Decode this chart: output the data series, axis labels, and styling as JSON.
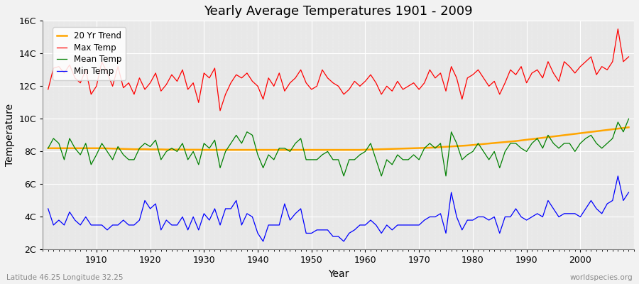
{
  "title": "Yearly Average Temperatures 1901 - 2009",
  "xlabel": "Year",
  "ylabel": "Temperature",
  "subtitle": "Latitude 46.25 Longitude 32.25",
  "watermark": "worldspecies.org",
  "years": [
    1901,
    1902,
    1903,
    1904,
    1905,
    1906,
    1907,
    1908,
    1909,
    1910,
    1911,
    1912,
    1913,
    1914,
    1915,
    1916,
    1917,
    1918,
    1919,
    1920,
    1921,
    1922,
    1923,
    1924,
    1925,
    1926,
    1927,
    1928,
    1929,
    1930,
    1931,
    1932,
    1933,
    1934,
    1935,
    1936,
    1937,
    1938,
    1939,
    1940,
    1941,
    1942,
    1943,
    1944,
    1945,
    1946,
    1947,
    1948,
    1949,
    1950,
    1951,
    1952,
    1953,
    1954,
    1955,
    1956,
    1957,
    1958,
    1959,
    1960,
    1961,
    1962,
    1963,
    1964,
    1965,
    1966,
    1967,
    1968,
    1969,
    1970,
    1971,
    1972,
    1973,
    1974,
    1975,
    1976,
    1977,
    1978,
    1979,
    1980,
    1981,
    1982,
    1983,
    1984,
    1985,
    1986,
    1987,
    1988,
    1989,
    1990,
    1991,
    1992,
    1993,
    1994,
    1995,
    1996,
    1997,
    1998,
    1999,
    2000,
    2001,
    2002,
    2003,
    2004,
    2005,
    2006,
    2007,
    2008,
    2009
  ],
  "max_temp": [
    11.8,
    13.1,
    13.2,
    12.8,
    13.3,
    12.5,
    12.2,
    13.0,
    11.5,
    12.0,
    13.5,
    12.8,
    12.0,
    13.2,
    11.9,
    12.2,
    11.5,
    12.5,
    11.8,
    12.2,
    12.8,
    11.7,
    12.1,
    12.7,
    12.3,
    13.0,
    11.8,
    12.2,
    11.0,
    12.8,
    12.5,
    13.1,
    10.5,
    11.5,
    12.2,
    12.7,
    12.5,
    12.8,
    12.3,
    12.0,
    11.2,
    12.5,
    12.0,
    12.8,
    11.7,
    12.2,
    12.5,
    13.0,
    12.2,
    11.8,
    12.0,
    13.0,
    12.5,
    12.2,
    12.0,
    11.5,
    11.8,
    12.3,
    12.0,
    12.3,
    12.7,
    12.2,
    11.5,
    12.0,
    11.7,
    12.3,
    11.8,
    12.0,
    12.2,
    11.8,
    12.2,
    13.0,
    12.5,
    12.8,
    11.7,
    13.2,
    12.5,
    11.2,
    12.5,
    12.7,
    13.0,
    12.5,
    12.0,
    12.3,
    11.5,
    12.2,
    13.0,
    12.7,
    13.2,
    12.2,
    12.8,
    13.0,
    12.5,
    13.5,
    12.8,
    12.3,
    13.5,
    13.2,
    12.8,
    13.2,
    13.5,
    13.8,
    12.7,
    13.2,
    13.0,
    13.5,
    15.5,
    13.5,
    13.8
  ],
  "mean_temp": [
    8.2,
    8.8,
    8.5,
    7.5,
    8.8,
    8.2,
    7.8,
    8.5,
    7.2,
    7.8,
    8.5,
    8.0,
    7.5,
    8.3,
    7.8,
    7.5,
    7.5,
    8.2,
    8.5,
    8.3,
    8.7,
    7.5,
    8.0,
    8.2,
    8.0,
    8.5,
    7.5,
    8.0,
    7.2,
    8.5,
    8.2,
    8.7,
    7.0,
    8.0,
    8.5,
    9.0,
    8.5,
    9.2,
    9.0,
    7.8,
    7.0,
    7.8,
    7.5,
    8.2,
    8.2,
    8.0,
    8.5,
    8.8,
    7.5,
    7.5,
    7.5,
    7.8,
    8.0,
    7.5,
    7.5,
    6.5,
    7.5,
    7.5,
    7.8,
    8.0,
    8.5,
    7.5,
    6.5,
    7.5,
    7.2,
    7.8,
    7.5,
    7.5,
    7.8,
    7.5,
    8.2,
    8.5,
    8.2,
    8.5,
    6.5,
    9.2,
    8.5,
    7.5,
    7.8,
    8.0,
    8.5,
    8.0,
    7.5,
    8.0,
    7.0,
    8.0,
    8.5,
    8.5,
    8.2,
    8.0,
    8.5,
    8.8,
    8.2,
    9.0,
    8.5,
    8.2,
    8.5,
    8.5,
    8.0,
    8.5,
    8.8,
    9.0,
    8.5,
    8.2,
    8.5,
    8.8,
    9.8,
    9.2,
    10.0
  ],
  "min_temp": [
    4.5,
    3.5,
    3.8,
    3.5,
    4.3,
    3.8,
    3.5,
    4.0,
    3.5,
    3.5,
    3.5,
    3.2,
    3.5,
    3.5,
    3.8,
    3.5,
    3.5,
    3.8,
    5.0,
    4.5,
    4.8,
    3.2,
    3.8,
    3.5,
    3.5,
    4.0,
    3.2,
    4.0,
    3.2,
    4.2,
    3.8,
    4.5,
    3.5,
    4.5,
    4.5,
    5.0,
    3.5,
    4.2,
    4.0,
    3.0,
    2.5,
    3.5,
    3.5,
    3.5,
    4.8,
    3.8,
    4.2,
    4.5,
    3.0,
    3.0,
    3.2,
    3.2,
    3.2,
    2.8,
    2.8,
    2.5,
    3.0,
    3.2,
    3.5,
    3.5,
    3.8,
    3.5,
    3.0,
    3.5,
    3.2,
    3.5,
    3.5,
    3.5,
    3.5,
    3.5,
    3.8,
    4.0,
    4.0,
    4.2,
    3.0,
    5.5,
    4.0,
    3.2,
    3.8,
    3.8,
    4.0,
    4.0,
    3.8,
    4.0,
    3.0,
    4.0,
    4.0,
    4.5,
    4.0,
    3.8,
    4.0,
    4.2,
    4.0,
    5.0,
    4.5,
    4.0,
    4.2,
    4.2,
    4.2,
    4.0,
    4.5,
    5.0,
    4.5,
    4.2,
    4.8,
    5.0,
    6.5,
    5.0,
    5.5
  ],
  "trend": [
    8.2,
    8.2,
    8.2,
    8.2,
    8.2,
    8.2,
    8.2,
    8.2,
    8.2,
    8.2,
    8.2,
    8.19,
    8.18,
    8.17,
    8.16,
    8.15,
    8.14,
    8.14,
    8.14,
    8.13,
    8.13,
    8.13,
    8.12,
    8.12,
    8.12,
    8.12,
    8.11,
    8.11,
    8.11,
    8.1,
    8.1,
    8.1,
    8.1,
    8.1,
    8.1,
    8.1,
    8.1,
    8.1,
    8.1,
    8.1,
    8.1,
    8.1,
    8.1,
    8.1,
    8.1,
    8.1,
    8.1,
    8.1,
    8.1,
    8.1,
    8.1,
    8.1,
    8.1,
    8.1,
    8.1,
    8.1,
    8.1,
    8.1,
    8.1,
    8.11,
    8.12,
    8.13,
    8.14,
    8.15,
    8.16,
    8.17,
    8.18,
    8.19,
    8.2,
    8.21,
    8.22,
    8.23,
    8.25,
    8.27,
    8.29,
    8.31,
    8.33,
    8.35,
    8.37,
    8.4,
    8.43,
    8.46,
    8.49,
    8.52,
    8.55,
    8.58,
    8.61,
    8.64,
    8.68,
    8.72,
    8.76,
    8.8,
    8.84,
    8.88,
    8.92,
    8.96,
    9.0,
    9.04,
    9.08,
    9.12,
    9.16,
    9.2,
    9.24,
    9.28,
    9.32,
    9.36,
    9.4,
    9.44,
    9.48
  ],
  "max_color": "#ff0000",
  "mean_color": "#008000",
  "min_color": "#0000ff",
  "trend_color": "#ffa500",
  "bg_color": "#f2f2f2",
  "plot_bg_color": "#e8e8e8",
  "ylim": [
    2,
    16
  ],
  "yticks": [
    2,
    4,
    6,
    8,
    10,
    12,
    14,
    16
  ],
  "ytick_labels": [
    "2C",
    "4C",
    "6C",
    "8C",
    "10C",
    "12C",
    "14C",
    "16C"
  ],
  "xlim": [
    1900,
    2010
  ],
  "title_fontsize": 13,
  "axis_label_fontsize": 10,
  "tick_fontsize": 9,
  "legend_fontsize": 8.5
}
